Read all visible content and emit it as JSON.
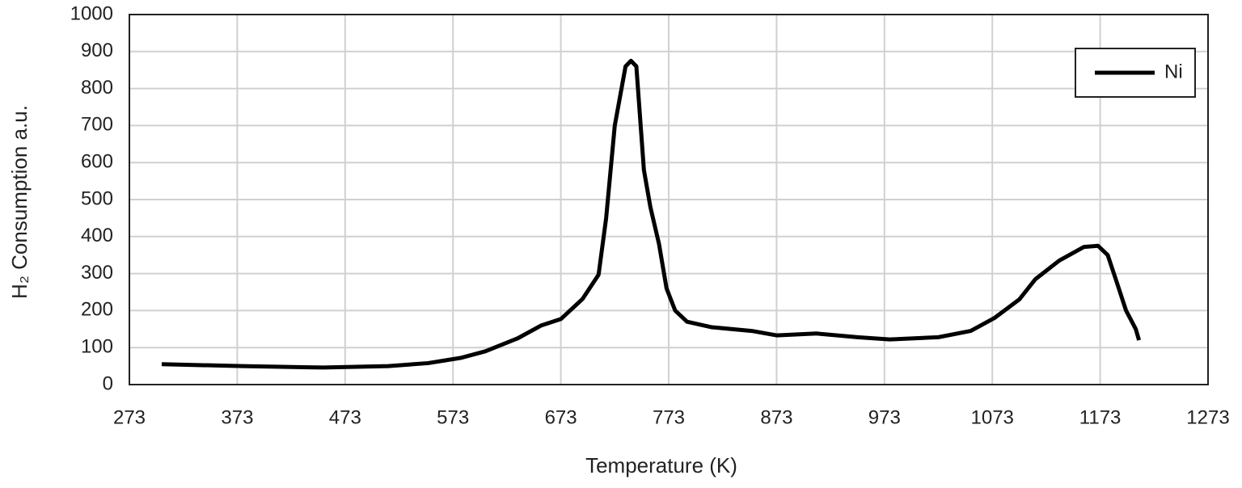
{
  "chart_data": {
    "type": "line",
    "x_label": "Temperature (K)",
    "y_label": "H₂ Consumption a.u.",
    "x": [
      303,
      378,
      453,
      513,
      550,
      580,
      603,
      633,
      655,
      673,
      693,
      708,
      715,
      723,
      733,
      738,
      743,
      747,
      750,
      756,
      764,
      771,
      779,
      790,
      813,
      850,
      873,
      910,
      948,
      978,
      1023,
      1053,
      1075,
      1098,
      1113,
      1135,
      1158,
      1171,
      1180,
      1188,
      1197,
      1206,
      1209
    ],
    "series": [
      {
        "name": "Ni",
        "color": "#000000",
        "values": [
          55,
          50,
          46,
          50,
          58,
          72,
          90,
          125,
          160,
          177,
          231,
          297,
          450,
          700,
          860,
          875,
          860,
          700,
          580,
          480,
          380,
          260,
          200,
          170,
          155,
          145,
          133,
          138,
          128,
          122,
          128,
          145,
          180,
          230,
          285,
          335,
          372,
          375,
          350,
          280,
          200,
          150,
          120
        ]
      }
    ],
    "xlim": [
      273,
      1273
    ],
    "xticks": [
      273,
      373,
      473,
      573,
      673,
      773,
      873,
      973,
      1073,
      1173,
      1273
    ],
    "ylim": [
      0,
      1000
    ],
    "yticks": [
      0,
      100,
      200,
      300,
      400,
      500,
      600,
      700,
      800,
      900,
      1000
    ],
    "grid": true,
    "legend": "upper right"
  }
}
